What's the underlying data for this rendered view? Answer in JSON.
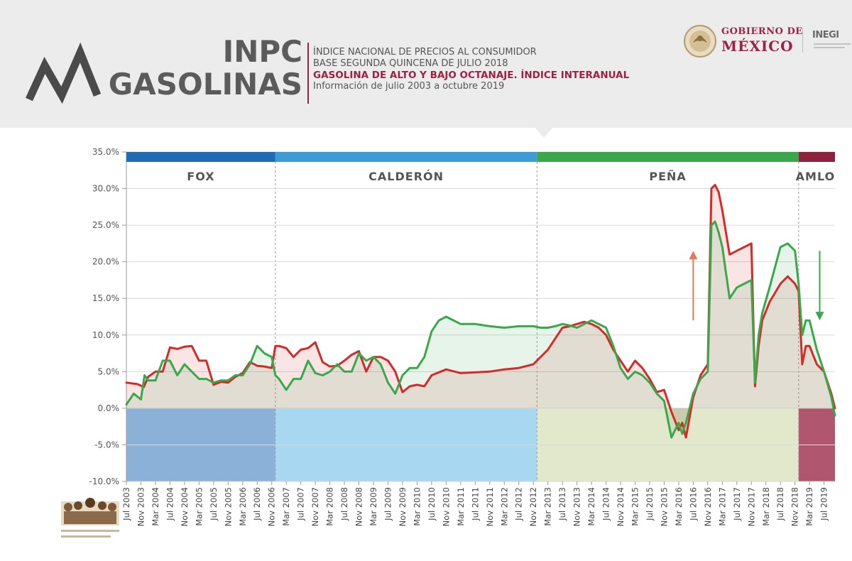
{
  "header": {
    "title_line1": "INPC",
    "title_line2": "GASOLINAS",
    "subtitle_line1": "ÍNDICE NACIONAL DE PRECIOS AL CONSUMIDOR",
    "subtitle_line2": "BASE SEGUNDA QUINCENA DE JULIO 2018",
    "subtitle_line3": "GASOLINA DE ALTO Y BAJO OCTANAJE. ÍNDICE INTERANUAL",
    "subtitle_line4": "Información de julio 2003 a octubre 2019",
    "gov_line1": "GOBIERNO DE",
    "gov_line2": "MÉXICO",
    "inegi": "INEGI"
  },
  "colors": {
    "high_octane": "#d32a2a",
    "low_octane": "#3aa84a",
    "fox": "#1f6bb4",
    "calderon": "#3d9bd6",
    "pena": "#3aa84a",
    "amlo": "#8c2140",
    "title_accent": "#9b2247"
  },
  "chart_data": {
    "type": "line",
    "ylim": [
      -10,
      35
    ],
    "yticks": [
      "35.0%",
      "30.0%",
      "25.0%",
      "20.0%",
      "15.0%",
      "10.0%",
      "5.0%",
      "0.0%",
      "-5.0%",
      "-10.0%"
    ],
    "ytick_values": [
      35,
      30,
      25,
      20,
      15,
      10,
      5,
      0,
      -5,
      -10
    ],
    "xlim": [
      2003.5,
      2019.75
    ],
    "xticks": [
      "Jul 2003",
      "Nov 2003",
      "Mar 2004",
      "Jul 2004",
      "Nov 2004",
      "Mar 2005",
      "Jul 2005",
      "Nov 2005",
      "Mar 2006",
      "Jul 2006",
      "Nov 2006",
      "Mar 2007",
      "Jul 2007",
      "Nov 2007",
      "Mar 2008",
      "Jul 2008",
      "Nov 2008",
      "Mar 2009",
      "Jul 2009",
      "Nov 2009",
      "Mar 2010",
      "Jul 2010",
      "Nov 2010",
      "Mar 2011",
      "Jul 2011",
      "Nov 2011",
      "Mar 2012",
      "Jul 2012",
      "Nov 2012",
      "Mar 2013",
      "Jul 2013",
      "Nov 2013",
      "Mar 2014",
      "Jul 2014",
      "Nov 2014",
      "Mar 2015",
      "Jul 2015",
      "Nov 2015",
      "Mar 2016",
      "Jul 2016",
      "Nov 2016",
      "Mar 2017",
      "Jul 2017",
      "Nov 2017",
      "Mar 2018",
      "Jul 2018",
      "Nov 2018",
      "Mar 2019",
      "Jul 2019"
    ],
    "xtick_values": [
      2003.5,
      2003.833,
      2004.167,
      2004.5,
      2004.833,
      2005.167,
      2005.5,
      2005.833,
      2006.167,
      2006.5,
      2006.833,
      2007.167,
      2007.5,
      2007.833,
      2008.167,
      2008.5,
      2008.833,
      2009.167,
      2009.5,
      2009.833,
      2010.167,
      2010.5,
      2010.833,
      2011.167,
      2011.5,
      2011.833,
      2012.167,
      2012.5,
      2012.833,
      2013.167,
      2013.5,
      2013.833,
      2014.167,
      2014.5,
      2014.833,
      2015.167,
      2015.5,
      2015.833,
      2016.167,
      2016.5,
      2016.833,
      2017.167,
      2017.5,
      2017.833,
      2018.167,
      2018.5,
      2018.833,
      2019.167,
      2019.5
    ],
    "periods": [
      {
        "name": "FOX",
        "start": 2003.5,
        "end": 2006.917,
        "color": "#1f6bb4",
        "fill": "#7fa8d4"
      },
      {
        "name": "CALDERÓN",
        "start": 2006.917,
        "end": 2012.917,
        "color": "#3d9bd6",
        "fill": "#9fd3ef"
      },
      {
        "name": "PEÑA",
        "start": 2012.917,
        "end": 2018.917,
        "color": "#3aa84a",
        "fill": "#dfe6c6"
      },
      {
        "name": "AMLO",
        "start": 2018.917,
        "end": 2019.917,
        "color": "#8c2140",
        "fill": "#a8445f"
      }
    ],
    "series": [
      {
        "color": "#d32a2a",
        "x": [
          2003.5,
          2003.75,
          2003.9,
          2004.0,
          2004.167,
          2004.333,
          2004.5,
          2004.667,
          2004.833,
          2005.0,
          2005.167,
          2005.333,
          2005.5,
          2005.667,
          2005.833,
          2006.0,
          2006.167,
          2006.333,
          2006.5,
          2006.667,
          2006.833,
          2006.917,
          2007.0,
          2007.167,
          2007.333,
          2007.5,
          2007.667,
          2007.833,
          2008.0,
          2008.167,
          2008.333,
          2008.5,
          2008.667,
          2008.833,
          2009.0,
          2009.167,
          2009.333,
          2009.5,
          2009.667,
          2009.833,
          2010.0,
          2010.167,
          2010.333,
          2010.5,
          2010.833,
          2011.167,
          2011.5,
          2011.833,
          2012.167,
          2012.5,
          2012.833,
          2013.0,
          2013.167,
          2013.333,
          2013.5,
          2013.667,
          2013.833,
          2014.0,
          2014.167,
          2014.333,
          2014.5,
          2014.667,
          2014.833,
          2015.0,
          2015.167,
          2015.333,
          2015.5,
          2015.667,
          2015.833,
          2016.0,
          2016.167,
          2016.25,
          2016.333,
          2016.5,
          2016.667,
          2016.833,
          2016.917,
          2017.0,
          2017.083,
          2017.167,
          2017.333,
          2017.5,
          2017.667,
          2017.833,
          2017.917,
          2018.0,
          2018.083,
          2018.25,
          2018.5,
          2018.667,
          2018.833,
          2018.917,
          2019.0,
          2019.083,
          2019.167,
          2019.333,
          2019.5,
          2019.667,
          2019.75
        ],
        "y": [
          3.5,
          3.3,
          2.9,
          4.3,
          5.0,
          5.0,
          8.3,
          8.1,
          8.4,
          8.5,
          6.5,
          6.5,
          3.2,
          3.6,
          3.5,
          4.3,
          4.8,
          6.3,
          5.8,
          5.7,
          5.5,
          8.5,
          8.5,
          8.2,
          7.0,
          8.0,
          8.2,
          9.0,
          6.3,
          5.7,
          5.8,
          6.5,
          7.3,
          7.8,
          5.0,
          7.0,
          7.0,
          6.5,
          5.0,
          2.2,
          3.0,
          3.2,
          3.0,
          4.5,
          5.3,
          4.8,
          4.9,
          5.0,
          5.3,
          5.5,
          6.0,
          7.0,
          8.0,
          9.5,
          11.0,
          11.2,
          11.5,
          11.8,
          11.5,
          11.0,
          10.0,
          8.0,
          6.5,
          5.0,
          6.5,
          5.5,
          4.0,
          2.2,
          2.5,
          -0.5,
          -3.0,
          -2.0,
          -4.0,
          1.5,
          4.5,
          6.0,
          30.0,
          30.5,
          29.5,
          27.0,
          21.0,
          21.5,
          22.0,
          22.5,
          3.0,
          8.5,
          12.0,
          14.5,
          17.0,
          18.0,
          17.0,
          16.0,
          6.0,
          8.5,
          8.5,
          6.0,
          5.0,
          2.0,
          0.0
        ]
      },
      {
        "color": "#3aa84a",
        "x": [
          2003.5,
          2003.667,
          2003.833,
          2003.917,
          2004.0,
          2004.167,
          2004.333,
          2004.5,
          2004.667,
          2004.833,
          2005.0,
          2005.167,
          2005.333,
          2005.5,
          2005.667,
          2005.833,
          2006.0,
          2006.167,
          2006.333,
          2006.5,
          2006.667,
          2006.833,
          2006.917,
          2007.0,
          2007.167,
          2007.333,
          2007.5,
          2007.667,
          2007.833,
          2008.0,
          2008.167,
          2008.333,
          2008.5,
          2008.667,
          2008.833,
          2009.0,
          2009.167,
          2009.333,
          2009.5,
          2009.667,
          2009.833,
          2010.0,
          2010.167,
          2010.333,
          2010.5,
          2010.667,
          2010.833,
          2011.167,
          2011.5,
          2011.833,
          2012.167,
          2012.5,
          2012.833,
          2013.0,
          2013.167,
          2013.333,
          2013.5,
          2013.667,
          2013.833,
          2014.0,
          2014.167,
          2014.333,
          2014.5,
          2014.667,
          2014.833,
          2015.0,
          2015.167,
          2015.333,
          2015.5,
          2015.667,
          2015.833,
          2016.0,
          2016.167,
          2016.25,
          2016.333,
          2016.5,
          2016.667,
          2016.833,
          2016.917,
          2017.0,
          2017.083,
          2017.167,
          2017.333,
          2017.5,
          2017.667,
          2017.833,
          2017.917,
          2018.0,
          2018.083,
          2018.25,
          2018.5,
          2018.667,
          2018.833,
          2018.917,
          2019.0,
          2019.083,
          2019.167,
          2019.333,
          2019.5,
          2019.667,
          2019.75
        ],
        "y": [
          0.5,
          2.0,
          1.2,
          4.5,
          3.8,
          3.8,
          6.5,
          6.5,
          4.5,
          6.0,
          5.0,
          4.0,
          4.0,
          3.5,
          3.8,
          3.8,
          4.5,
          4.5,
          6.0,
          8.5,
          7.5,
          7.0,
          4.5,
          4.0,
          2.5,
          4.0,
          4.0,
          6.5,
          4.8,
          4.5,
          5.0,
          6.0,
          5.0,
          5.0,
          7.5,
          6.5,
          7.0,
          6.0,
          3.5,
          2.0,
          4.5,
          5.5,
          5.5,
          7.0,
          10.5,
          12.0,
          12.5,
          11.5,
          11.5,
          11.2,
          11.0,
          11.2,
          11.2,
          11.0,
          11.0,
          11.2,
          11.5,
          11.3,
          11.0,
          11.5,
          12.0,
          11.5,
          11.0,
          8.5,
          5.5,
          4.0,
          5.0,
          4.5,
          3.5,
          2.0,
          1.0,
          -4.0,
          -2.0,
          -3.5,
          -2.0,
          2.0,
          4.0,
          5.0,
          25.0,
          25.5,
          24.0,
          22.0,
          15.0,
          16.5,
          17.0,
          17.5,
          3.5,
          10.0,
          13.0,
          16.5,
          22.0,
          22.5,
          21.5,
          17.0,
          10.0,
          12.0,
          12.0,
          8.0,
          5.0,
          1.5,
          -1.0
        ]
      }
    ],
    "annotations": [
      {
        "type": "arrow",
        "direction": "up",
        "color": "#e8765a",
        "x": 2016.5,
        "y_from": 12,
        "y_to": 21.5
      },
      {
        "type": "arrow",
        "direction": "down",
        "color": "#3aa84a",
        "x": 2019.4,
        "y_from": 21.5,
        "y_to": 12
      }
    ]
  }
}
